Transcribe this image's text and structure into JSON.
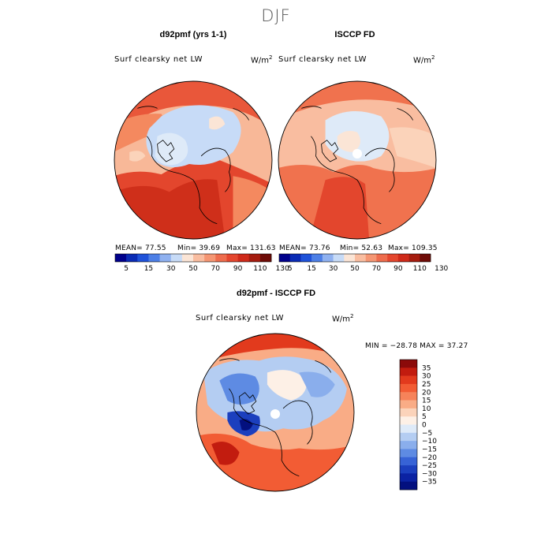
{
  "figure": {
    "title": "DJF"
  },
  "panels": [
    {
      "title": "d92pmf (yrs 1-1)",
      "field": "Surf clearsky net LW",
      "units": "W/m",
      "units_exp": "2",
      "mean_label": "MEAN= 77.55",
      "min_label": "Min= 39.69",
      "max_label": "Max= 131.63"
    },
    {
      "title": "ISCCP FD",
      "field": "Surf clearsky net LW",
      "units": "W/m",
      "units_exp": "2",
      "mean_label": "MEAN= 73.76",
      "min_label": "Min= 52.63",
      "max_label": "Max= 109.35"
    }
  ],
  "diff_panel": {
    "title": "d92pmf - ISCCP FD",
    "field": "Surf clearsky net LW",
    "units": "W/m",
    "units_exp": "2",
    "minmax_label": "MIN = −28.78 MAX =  37.27"
  },
  "colorbar_top": {
    "colors": [
      "#00008b",
      "#0a2bb5",
      "#1f52d9",
      "#4d7fe6",
      "#8fb1f0",
      "#c7dbf7",
      "#fbe5d6",
      "#f9bda0",
      "#f59673",
      "#ee6c4d",
      "#e4462e",
      "#cf2a1a",
      "#a51c0f",
      "#6e0c07"
    ],
    "tick_labels": [
      "5",
      "15",
      "30",
      "50",
      "70",
      "90",
      "110",
      "130"
    ]
  },
  "colorbar_diff": {
    "colors_top_to_bottom": [
      "#8b0a0a",
      "#c21c0f",
      "#e23a1d",
      "#f25c34",
      "#f6835a",
      "#f9ac86",
      "#fbd3ba",
      "#fdf0e6",
      "#deeaf8",
      "#b4cdf2",
      "#8aaeec",
      "#5e8be3",
      "#3763d6",
      "#1b3fbe",
      "#0b22a3",
      "#03107f"
    ],
    "tick_labels": [
      "35",
      "30",
      "25",
      "20",
      "15",
      "10",
      "5",
      "0",
      "−5",
      "−10",
      "−15",
      "−20",
      "−25",
      "−30",
      "−35"
    ]
  }
}
